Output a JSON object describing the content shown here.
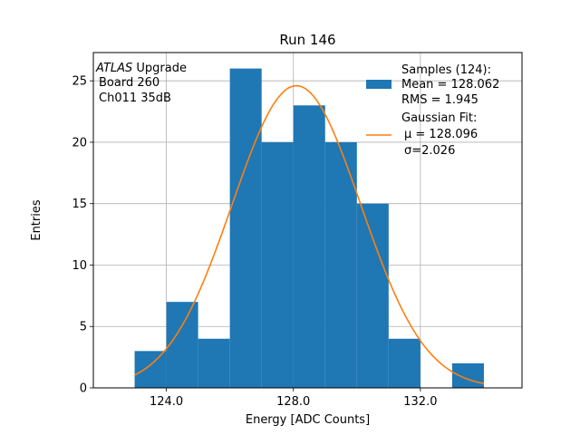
{
  "chart_data": {
    "type": "bar",
    "title": "Run 146",
    "xlabel": "Energy [ADC Counts]",
    "ylabel": "Entries",
    "xlim": [
      121.7,
      135.2
    ],
    "ylim": [
      0,
      27.3
    ],
    "xticks": [
      124.0,
      128.0,
      132.0
    ],
    "xtick_labels": [
      "124.0",
      "128.0",
      "132.0"
    ],
    "yticks": [
      0,
      5,
      10,
      15,
      20,
      25
    ],
    "ytick_labels": [
      "0",
      "5",
      "10",
      "15",
      "20",
      "25"
    ],
    "grid": true,
    "histogram": {
      "bin_edges": [
        123.0,
        124.0,
        125.0,
        126.0,
        127.0,
        128.0,
        129.0,
        130.0,
        131.0,
        132.0,
        133.0,
        134.0
      ],
      "counts": [
        3,
        7,
        4,
        26,
        20,
        23,
        20,
        15,
        4,
        0,
        2
      ],
      "color": "#1f77b4"
    },
    "fit": {
      "mu": 128.096,
      "sigma": 2.026,
      "amplitude": 24.6,
      "x_range": [
        123.0,
        134.0
      ],
      "color": "#ff7f0e"
    },
    "annotation": {
      "line1_italic": "ATLAS",
      "line1_rest": " Upgrade",
      "line2": "Board 260",
      "line3": "Ch011 35dB"
    },
    "legend": {
      "placement": "top-right",
      "samples_lines": [
        "Samples (124):",
        "Mean = 128.062",
        "RMS = 1.945"
      ],
      "fit_lines": [
        "Gaussian Fit:",
        "μ = 128.096",
        "σ=2.026"
      ]
    }
  }
}
